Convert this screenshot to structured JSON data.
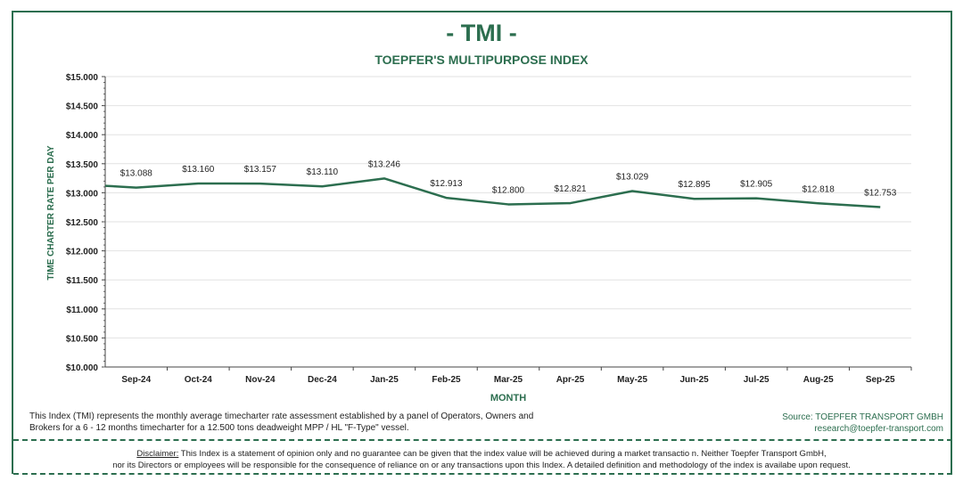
{
  "title": "- TMI -",
  "subtitle": "TOEPFER'S MULTIPURPOSE INDEX",
  "chart_data": {
    "type": "line",
    "title": "TOEPFER'S MULTIPURPOSE INDEX",
    "xlabel": "MONTH",
    "ylabel": "TIME CHARTER RATE PER DAY",
    "categories": [
      "Sep-24",
      "Oct-24",
      "Nov-24",
      "Dec-24",
      "Jan-25",
      "Feb-25",
      "Mar-25",
      "Apr-25",
      "May-25",
      "Jun-25",
      "Jul-25",
      "Aug-25",
      "Sep-25"
    ],
    "values": [
      13088,
      13160,
      13157,
      13110,
      13246,
      12913,
      12800,
      12821,
      13029,
      12895,
      12905,
      12818,
      12753
    ],
    "data_labels": [
      "$13.088",
      "$13.160",
      "$13.157",
      "$13.110",
      "$13.246",
      "$12.913",
      "$12.800",
      "$12.821",
      "$13.029",
      "$12.895",
      "$12.905",
      "$12.818",
      "$12.753"
    ],
    "prior_value": 13120,
    "ylim": [
      10000,
      15000
    ],
    "yticks": [
      10000,
      10500,
      11000,
      11500,
      12000,
      12500,
      13000,
      13500,
      14000,
      14500,
      15000
    ],
    "ytick_labels": [
      "$10.000",
      "$10.500",
      "$11.000",
      "$11.500",
      "$12.000",
      "$12.500",
      "$13.000",
      "$13.500",
      "$14.000",
      "$14.500",
      "$15.000"
    ],
    "grid": true,
    "line_color": "#2c6e4f"
  },
  "footer": {
    "note_line1": "This Index (TMI) represents the monthly  average timecharter rate assessment established by a panel of Operators, Owners and",
    "note_line2": "Brokers for a 6 - 12 months timecharter for a 12.500 tons deadweight MPP / HL \"F-Type\" vessel.",
    "source": "Source: TOEPFER TRANSPORT GMBH",
    "email": "research@toepfer-transport.com",
    "disclaimer_label": "Disclaimer:",
    "disclaimer_line1": " This Index is a statement of opinion only and no guarantee can be given that the index value will be achieved during a market transactio   n. Neither Toepfer Transport GmbH,",
    "disclaimer_line2": "nor its Directors or employees will be responsible for the consequence of reliance on or any transactions upon this Index.    A detailed definition and methodology of the index is availabe upon request."
  }
}
